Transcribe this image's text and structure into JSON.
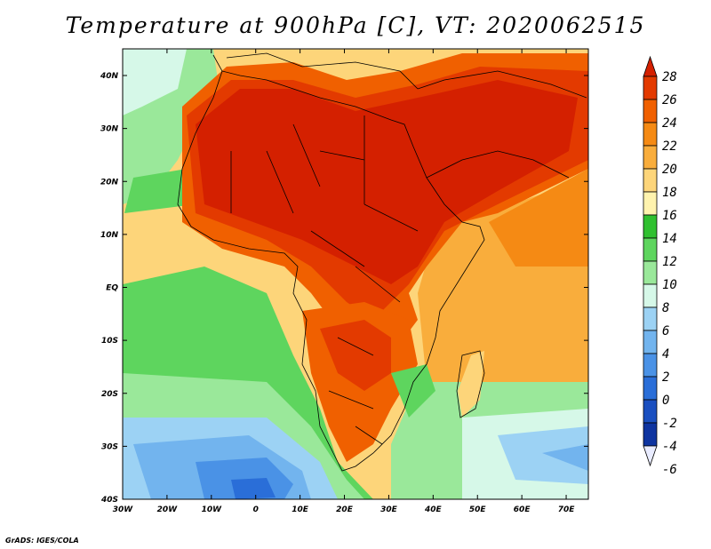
{
  "title": "Temperature at 900hPa [C], VT: 2020062515",
  "credit": "GrADS: IGES/COLA",
  "map": {
    "lon_labels": [
      "30W",
      "20W",
      "10W",
      "0",
      "10E",
      "20E",
      "30E",
      "40E",
      "50E",
      "60E",
      "70E"
    ],
    "lat_labels": [
      "40N",
      "30N",
      "20N",
      "10N",
      "EQ",
      "10S",
      "20S",
      "30S",
      "40S"
    ]
  },
  "colorbar": {
    "labels": [
      "28",
      "26",
      "24",
      "22",
      "20",
      "18",
      "16",
      "14",
      "12",
      "10",
      "8",
      "6",
      "4",
      "2",
      "0",
      "-2",
      "-4",
      "-6"
    ],
    "colors": [
      "#d42000",
      "#e33a00",
      "#f06000",
      "#f58a14",
      "#f9ad3c",
      "#fdd57a",
      "#fff3ae",
      "#30c030",
      "#5ed55e",
      "#9ae89a",
      "#d6f8e8",
      "#9cd2f4",
      "#72b4ee",
      "#4a92e6",
      "#2a6ed8",
      "#1a4fc0",
      "#0e34a0",
      "#101a70"
    ]
  }
}
